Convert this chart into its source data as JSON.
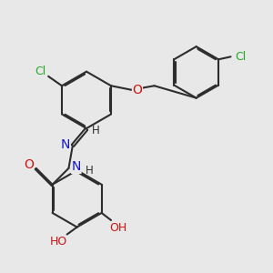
{
  "bg_color": "#e8e8e8",
  "bond_color": "#2d2d2d",
  "bond_width": 1.5,
  "dbo": 0.05,
  "atom_colors": {
    "C": "#2d2d2d",
    "N": "#1414cc",
    "O": "#cc1414",
    "Cl": "#22aa22",
    "H": "#2d2d2d"
  },
  "fs": 8.5,
  "xlim": [
    0,
    10
  ],
  "ylim": [
    0,
    10
  ]
}
